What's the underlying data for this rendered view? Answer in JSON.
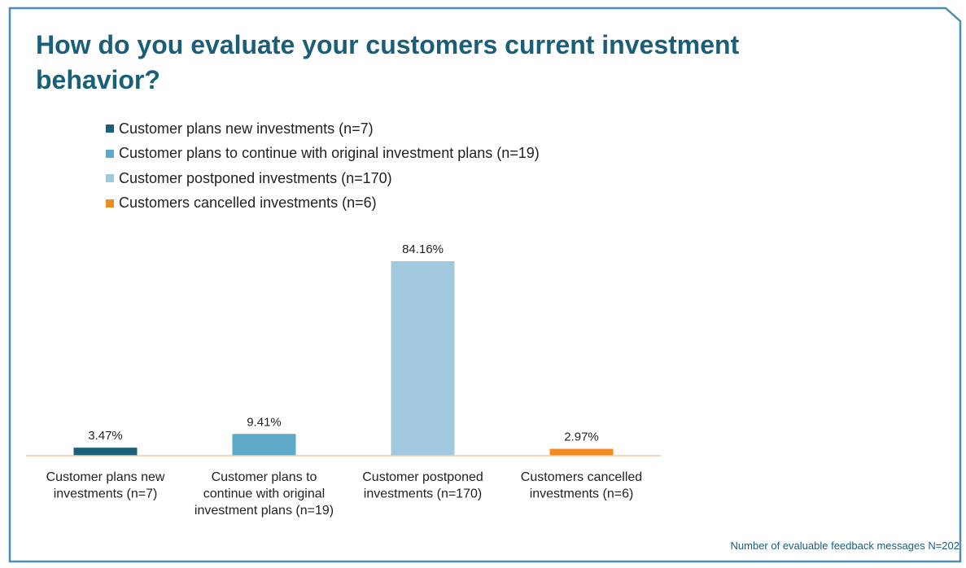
{
  "title": "How do you evaluate your customers current investment behavior?",
  "legend": [
    {
      "label": "Customer plans new investments (n=7)",
      "color": "#1b5f78"
    },
    {
      "label": "Customer plans to continue with original investment plans (n=19)",
      "color": "#5ea8c8"
    },
    {
      "label": "Customer postponed investments (n=170)",
      "color": "#a2c8de"
    },
    {
      "label": "Customers cancelled investments (n=6)",
      "color": "#f08c22"
    }
  ],
  "chart_data": {
    "type": "bar",
    "categories": [
      "Customer plans new investments (n=7)",
      "Customer plans to continue with original investment plans (n=19)",
      "Customer postponed investments (n=170)",
      "Customers cancelled investments (n=6)"
    ],
    "category_lines": [
      [
        "Customer plans new",
        "investments (n=7)"
      ],
      [
        "Customer plans to",
        "continue with original",
        "investment plans (n=19)"
      ],
      [
        "Customer postponed",
        "investments (n=170)"
      ],
      [
        "Customers cancelled",
        "investments (n=6)"
      ]
    ],
    "values": [
      3.47,
      9.41,
      84.16,
      2.97
    ],
    "data_labels": [
      "3.47%",
      "9.41%",
      "84.16%",
      "2.97%"
    ],
    "colors": [
      "#1b5f78",
      "#5ea8c8",
      "#a2c8de",
      "#f08c22"
    ],
    "unit": "%",
    "ylim": [
      0,
      84.16
    ],
    "grid": false,
    "legend_position": "top-left"
  },
  "footnote": "Number of evaluable feedback messages N=202",
  "frame_color": "#4a8fb0"
}
